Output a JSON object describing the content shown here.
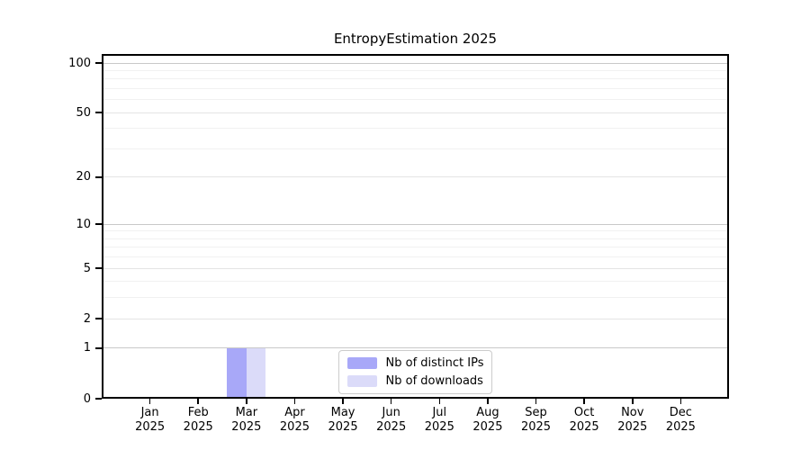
{
  "title": "EntropyEstimation 2025",
  "legend": {
    "items": [
      {
        "label": "Nb of distinct IPs",
        "color": "#a8a8f8"
      },
      {
        "label": "Nb of downloads",
        "color": "#dbdbf9"
      }
    ],
    "position": "lower center inside plot"
  },
  "chart_data": {
    "type": "bar",
    "title": "EntropyEstimation 2025",
    "categories": [
      "Jan 2025",
      "Feb 2025",
      "Mar 2025",
      "Apr 2025",
      "May 2025",
      "Jun 2025",
      "Jul 2025",
      "Aug 2025",
      "Sep 2025",
      "Oct 2025",
      "Nov 2025",
      "Dec 2025"
    ],
    "x_tick_months": [
      "Jan",
      "Feb",
      "Mar",
      "Apr",
      "May",
      "Jun",
      "Jul",
      "Aug",
      "Sep",
      "Oct",
      "Nov",
      "Dec"
    ],
    "x_tick_year": "2025",
    "series": [
      {
        "name": "Nb of distinct IPs",
        "color": "#a8a8f8",
        "values": [
          0,
          0,
          1,
          0,
          0,
          0,
          0,
          0,
          0,
          0,
          0,
          0
        ]
      },
      {
        "name": "Nb of downloads",
        "color": "#dbdbf9",
        "values": [
          0,
          0,
          1,
          0,
          0,
          0,
          0,
          0,
          0,
          0,
          0,
          0
        ]
      }
    ],
    "xlabel": "",
    "ylabel": "",
    "yscale": "log1p",
    "ylim": [
      0,
      113
    ],
    "ytick_values": [
      0,
      1,
      2,
      5,
      10,
      20,
      50,
      100
    ],
    "ytick_labels": [
      "0",
      "1",
      "2",
      "5",
      "10",
      "20",
      "50",
      "100"
    ],
    "ytick_minor_values": [
      3,
      4,
      6,
      7,
      8,
      9,
      30,
      40,
      60,
      70,
      80,
      90
    ],
    "grid": "horizontal, major and minor",
    "legend_position": "lower center"
  },
  "colors": {
    "background": "#ffffff",
    "axis": "#000000",
    "text": "#000000",
    "grid_decade": "#c9c9c9",
    "grid_labeled": "#e4e4e4",
    "grid_minor": "#f1f1f1",
    "legend_border": "#cccccc",
    "bar_distinct_ips": "#a8a8f8",
    "bar_downloads": "#dbdbf9"
  }
}
